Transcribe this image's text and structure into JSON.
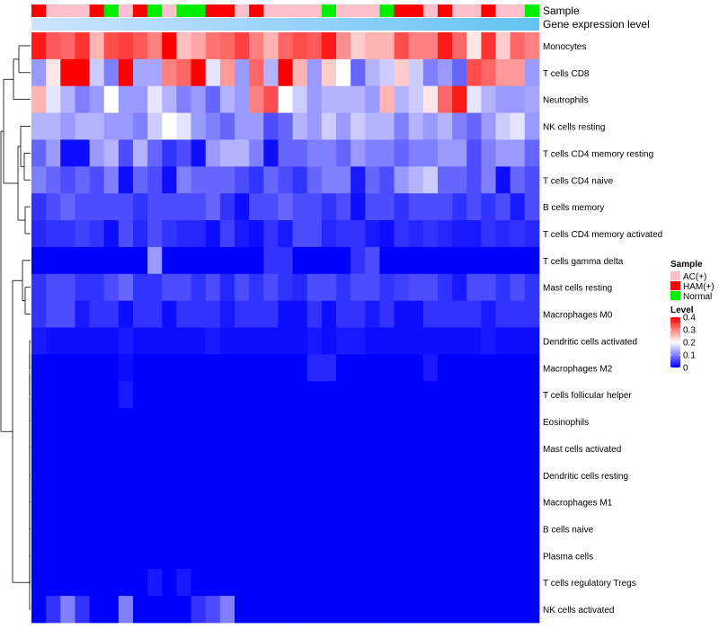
{
  "chart_data": {
    "type": "heatmap",
    "title": "",
    "annotation_tracks": [
      "Sample",
      "Gene expression level"
    ],
    "sample_groups": [
      "HAM(+)",
      "AC(+)",
      "AC(+)",
      "AC(+)",
      "HAM(+)",
      "Normal",
      "AC(+)",
      "HAM(+)",
      "Normal",
      "AC(+)",
      "Normal",
      "Normal",
      "HAM(+)",
      "HAM(+)",
      "AC(+)",
      "HAM(+)",
      "AC(+)",
      "AC(+)",
      "AC(+)",
      "AC(+)",
      "Normal",
      "AC(+)",
      "AC(+)",
      "AC(+)",
      "Normal",
      "HAM(+)",
      "HAM(+)",
      "AC(+)",
      "HAM(+)",
      "AC(+)",
      "AC(+)",
      "HAM(+)",
      "AC(+)",
      "AC(+)",
      "Normal"
    ],
    "group_colors": {
      "AC(+)": "#FFC0CB",
      "HAM(+)": "#FF0000",
      "Normal": "#00EE00"
    },
    "expression_track_colors": [
      "#cde3ff",
      "#63c3f2"
    ],
    "rows": [
      {
        "name": "Monocytes",
        "values": [
          0.38,
          0.33,
          0.32,
          0.36,
          0.26,
          0.34,
          0.35,
          0.33,
          0.3,
          0.4,
          0.25,
          0.27,
          0.31,
          0.32,
          0.35,
          0.3,
          0.26,
          0.32,
          0.34,
          0.33,
          0.38,
          0.29,
          0.24,
          0.26,
          0.26,
          0.34,
          0.3,
          0.3,
          0.38,
          0.32,
          0.22,
          0.36,
          0.24,
          0.32,
          0.3
        ]
      },
      {
        "name": "T cells CD8",
        "values": [
          0.12,
          0.22,
          0.4,
          0.4,
          0.16,
          0.1,
          0.4,
          0.13,
          0.13,
          0.3,
          0.32,
          0.4,
          0.18,
          0.28,
          0.12,
          0.32,
          0.14,
          0.4,
          0.26,
          0.12,
          0.24,
          0.2,
          0.08,
          0.14,
          0.16,
          0.24,
          0.16,
          0.1,
          0.12,
          0.08,
          0.34,
          0.32,
          0.28,
          0.28,
          0.12
        ]
      },
      {
        "name": "Neutrophils",
        "values": [
          0.26,
          0.18,
          0.14,
          0.1,
          0.12,
          0.2,
          0.12,
          0.12,
          0.18,
          0.14,
          0.1,
          0.12,
          0.08,
          0.14,
          0.12,
          0.3,
          0.34,
          0.2,
          0.16,
          0.12,
          0.14,
          0.14,
          0.14,
          0.12,
          0.26,
          0.14,
          0.16,
          0.22,
          0.32,
          0.38,
          0.18,
          0.14,
          0.12,
          0.12,
          0.13
        ]
      },
      {
        "name": "NK cells resting",
        "values": [
          0.14,
          0.14,
          0.12,
          0.14,
          0.14,
          0.12,
          0.12,
          0.1,
          0.16,
          0.2,
          0.18,
          0.12,
          0.1,
          0.08,
          0.12,
          0.12,
          0.06,
          0.08,
          0.14,
          0.12,
          0.16,
          0.12,
          0.16,
          0.14,
          0.14,
          0.1,
          0.14,
          0.12,
          0.14,
          0.1,
          0.08,
          0.12,
          0.16,
          0.18,
          0.12
        ]
      },
      {
        "name": "T cells CD4 memory resting",
        "values": [
          0.08,
          0.12,
          0.01,
          0.01,
          0.12,
          0.14,
          0.06,
          0.14,
          0.08,
          0.04,
          0.06,
          0.01,
          0.12,
          0.14,
          0.14,
          0.1,
          0.01,
          0.08,
          0.08,
          0.1,
          0.1,
          0.08,
          0.12,
          0.1,
          0.1,
          0.08,
          0.1,
          0.1,
          0.12,
          0.12,
          0.06,
          0.1,
          0.12,
          0.12,
          0.08
        ]
      },
      {
        "name": "T cells CD4 naive",
        "values": [
          0.1,
          0.08,
          0.06,
          0.08,
          0.06,
          0.1,
          0.01,
          0.08,
          0.06,
          0.01,
          0.1,
          0.08,
          0.08,
          0.08,
          0.06,
          0.04,
          0.08,
          0.06,
          0.04,
          0.08,
          0.1,
          0.1,
          0.02,
          0.08,
          0.06,
          0.12,
          0.14,
          0.16,
          0.08,
          0.08,
          0.06,
          0.1,
          0.01,
          0.08,
          0.06
        ]
      },
      {
        "name": "B cells memory",
        "values": [
          0.04,
          0.06,
          0.08,
          0.06,
          0.06,
          0.06,
          0.06,
          0.04,
          0.06,
          0.06,
          0.06,
          0.06,
          0.08,
          0.04,
          0.01,
          0.06,
          0.06,
          0.08,
          0.06,
          0.06,
          0.04,
          0.06,
          0.01,
          0.06,
          0.06,
          0.04,
          0.06,
          0.06,
          0.06,
          0.04,
          0.06,
          0.04,
          0.06,
          0.02,
          0.06
        ]
      },
      {
        "name": "T cells CD4 memory activated",
        "values": [
          0.03,
          0.04,
          0.04,
          0.05,
          0.04,
          0.01,
          0.06,
          0.03,
          0.06,
          0.04,
          0.03,
          0.03,
          0.01,
          0.05,
          0.02,
          0.01,
          0.04,
          0.02,
          0.06,
          0.06,
          0.03,
          0.04,
          0.04,
          0.02,
          0.01,
          0.04,
          0.03,
          0.04,
          0.03,
          0.02,
          0.02,
          0.04,
          0.03,
          0.04,
          0.03
        ]
      },
      {
        "name": "T cells gamma delta",
        "values": [
          0.0,
          0.0,
          0.0,
          0.0,
          0.0,
          0.0,
          0.0,
          0.0,
          0.12,
          0.0,
          0.0,
          0.0,
          0.0,
          0.0,
          0.0,
          0.0,
          0.04,
          0.04,
          0.0,
          0.0,
          0.0,
          0.0,
          0.04,
          0.06,
          0.0,
          0.0,
          0.0,
          0.0,
          0.0,
          0.0,
          0.0,
          0.0,
          0.0,
          0.0,
          0.0
        ]
      },
      {
        "name": "Mast cells resting",
        "values": [
          0.04,
          0.06,
          0.06,
          0.04,
          0.04,
          0.06,
          0.08,
          0.04,
          0.04,
          0.06,
          0.06,
          0.04,
          0.06,
          0.03,
          0.06,
          0.04,
          0.06,
          0.04,
          0.03,
          0.06,
          0.06,
          0.04,
          0.06,
          0.06,
          0.04,
          0.05,
          0.06,
          0.06,
          0.04,
          0.02,
          0.06,
          0.06,
          0.04,
          0.06,
          0.04
        ]
      },
      {
        "name": "Macrophages M0",
        "values": [
          0.04,
          0.06,
          0.06,
          0.02,
          0.04,
          0.04,
          0.01,
          0.04,
          0.04,
          0.01,
          0.04,
          0.04,
          0.04,
          0.02,
          0.04,
          0.04,
          0.04,
          0.01,
          0.01,
          0.04,
          0.01,
          0.04,
          0.04,
          0.02,
          0.04,
          0.01,
          0.01,
          0.04,
          0.04,
          0.04,
          0.04,
          0.02,
          0.04,
          0.04,
          0.04
        ]
      },
      {
        "name": "Dendritic cells activated",
        "values": [
          0.02,
          0.01,
          0.01,
          0.01,
          0.01,
          0.01,
          0.02,
          0.01,
          0.01,
          0.01,
          0.01,
          0.01,
          0.02,
          0.01,
          0.01,
          0.01,
          0.01,
          0.01,
          0.01,
          0.02,
          0.01,
          0.02,
          0.02,
          0.01,
          0.01,
          0.01,
          0.01,
          0.01,
          0.01,
          0.01,
          0.01,
          0.02,
          0.01,
          0.01,
          0.01
        ]
      },
      {
        "name": "Macrophages M2",
        "values": [
          0.0,
          0.0,
          0.0,
          0.0,
          0.0,
          0.0,
          0.01,
          0.0,
          0.0,
          0.0,
          0.0,
          0.0,
          0.0,
          0.0,
          0.0,
          0.0,
          0.0,
          0.0,
          0.0,
          0.03,
          0.03,
          0.0,
          0.0,
          0.0,
          0.0,
          0.0,
          0.0,
          0.02,
          0.0,
          0.0,
          0.0,
          0.0,
          0.0,
          0.0,
          0.0
        ]
      },
      {
        "name": "T cells follicular helper",
        "values": [
          0.0,
          0.0,
          0.0,
          0.0,
          0.0,
          0.0,
          0.02,
          0.0,
          0.0,
          0.0,
          0.0,
          0.0,
          0.0,
          0.0,
          0.0,
          0.0,
          0.0,
          0.0,
          0.0,
          0.0,
          0.0,
          0.0,
          0.0,
          0.0,
          0.0,
          0.0,
          0.0,
          0.0,
          0.0,
          0.0,
          0.0,
          0.0,
          0.0,
          0.0,
          0.0
        ]
      },
      {
        "name": "Eosinophils",
        "values": [
          0.0,
          0.0,
          0.0,
          0.0,
          0.0,
          0.0,
          0.0,
          0.0,
          0.0,
          0.0,
          0.0,
          0.0,
          0.0,
          0.0,
          0.0,
          0.0,
          0.0,
          0.0,
          0.0,
          0.0,
          0.0,
          0.0,
          0.0,
          0.0,
          0.0,
          0.0,
          0.0,
          0.0,
          0.0,
          0.0,
          0.0,
          0.0,
          0.0,
          0.0,
          0.0
        ]
      },
      {
        "name": "Mast cells activated",
        "values": [
          0.0,
          0.0,
          0.0,
          0.0,
          0.0,
          0.0,
          0.0,
          0.0,
          0.0,
          0.0,
          0.0,
          0.0,
          0.0,
          0.0,
          0.0,
          0.0,
          0.0,
          0.0,
          0.0,
          0.0,
          0.0,
          0.0,
          0.0,
          0.0,
          0.0,
          0.0,
          0.0,
          0.0,
          0.0,
          0.0,
          0.0,
          0.0,
          0.0,
          0.0,
          0.0
        ]
      },
      {
        "name": "Dendritic cells resting",
        "values": [
          0.0,
          0.0,
          0.0,
          0.0,
          0.0,
          0.0,
          0.0,
          0.0,
          0.0,
          0.0,
          0.0,
          0.0,
          0.0,
          0.0,
          0.0,
          0.0,
          0.0,
          0.0,
          0.0,
          0.0,
          0.0,
          0.0,
          0.0,
          0.0,
          0.0,
          0.0,
          0.0,
          0.0,
          0.0,
          0.0,
          0.0,
          0.0,
          0.0,
          0.0,
          0.0
        ]
      },
      {
        "name": "Macrophages M1",
        "values": [
          0.0,
          0.0,
          0.0,
          0.0,
          0.0,
          0.0,
          0.0,
          0.0,
          0.0,
          0.0,
          0.0,
          0.0,
          0.0,
          0.0,
          0.0,
          0.0,
          0.0,
          0.0,
          0.0,
          0.0,
          0.0,
          0.0,
          0.0,
          0.0,
          0.0,
          0.0,
          0.0,
          0.0,
          0.0,
          0.0,
          0.0,
          0.0,
          0.0,
          0.0,
          0.0
        ]
      },
      {
        "name": "B cells naive",
        "values": [
          0.0,
          0.0,
          0.0,
          0.0,
          0.0,
          0.0,
          0.0,
          0.0,
          0.0,
          0.0,
          0.0,
          0.0,
          0.0,
          0.0,
          0.0,
          0.0,
          0.0,
          0.0,
          0.0,
          0.0,
          0.0,
          0.0,
          0.0,
          0.0,
          0.0,
          0.0,
          0.0,
          0.0,
          0.0,
          0.0,
          0.0,
          0.0,
          0.0,
          0.0,
          0.0
        ]
      },
      {
        "name": "Plasma cells",
        "values": [
          0.0,
          0.0,
          0.0,
          0.0,
          0.0,
          0.0,
          0.0,
          0.0,
          0.0,
          0.0,
          0.0,
          0.0,
          0.0,
          0.0,
          0.0,
          0.0,
          0.0,
          0.0,
          0.0,
          0.0,
          0.0,
          0.0,
          0.0,
          0.0,
          0.0,
          0.0,
          0.0,
          0.0,
          0.0,
          0.0,
          0.0,
          0.0,
          0.0,
          0.0,
          0.0
        ]
      },
      {
        "name": "T cells regulatory  Tregs",
        "values": [
          0.0,
          0.0,
          0.0,
          0.0,
          0.0,
          0.0,
          0.0,
          0.0,
          0.02,
          0.0,
          0.02,
          0.0,
          0.0,
          0.0,
          0.0,
          0.0,
          0.0,
          0.0,
          0.0,
          0.0,
          0.0,
          0.0,
          0.0,
          0.0,
          0.0,
          0.0,
          0.0,
          0.0,
          0.0,
          0.0,
          0.0,
          0.0,
          0.0,
          0.0,
          0.0
        ]
      },
      {
        "name": "NK cells activated",
        "values": [
          0.0,
          0.04,
          0.1,
          0.04,
          0.0,
          0.0,
          0.1,
          0.0,
          0.0,
          0.0,
          0.0,
          0.04,
          0.06,
          0.1,
          0.0,
          0.0,
          0.0,
          0.0,
          0.0,
          0.0,
          0.0,
          0.0,
          0.0,
          0.0,
          0.0,
          0.0,
          0.0,
          0.0,
          0.0,
          0.0,
          0.0,
          0.0,
          0.0,
          0.0,
          0.0
        ]
      }
    ],
    "color_scale": {
      "min": 0,
      "max": 0.4,
      "colors": [
        "#0000FF",
        "#FFFFFF",
        "#FF0000"
      ]
    },
    "legend": {
      "position": "right",
      "sample_title": "Sample",
      "sample_entries": [
        "AC(+)",
        "HAM(+)",
        "Normal"
      ],
      "level_title": "Level",
      "level_ticks": [
        0.4,
        0.3,
        0.2,
        0.1,
        0
      ]
    },
    "dendrogram": "rows"
  }
}
